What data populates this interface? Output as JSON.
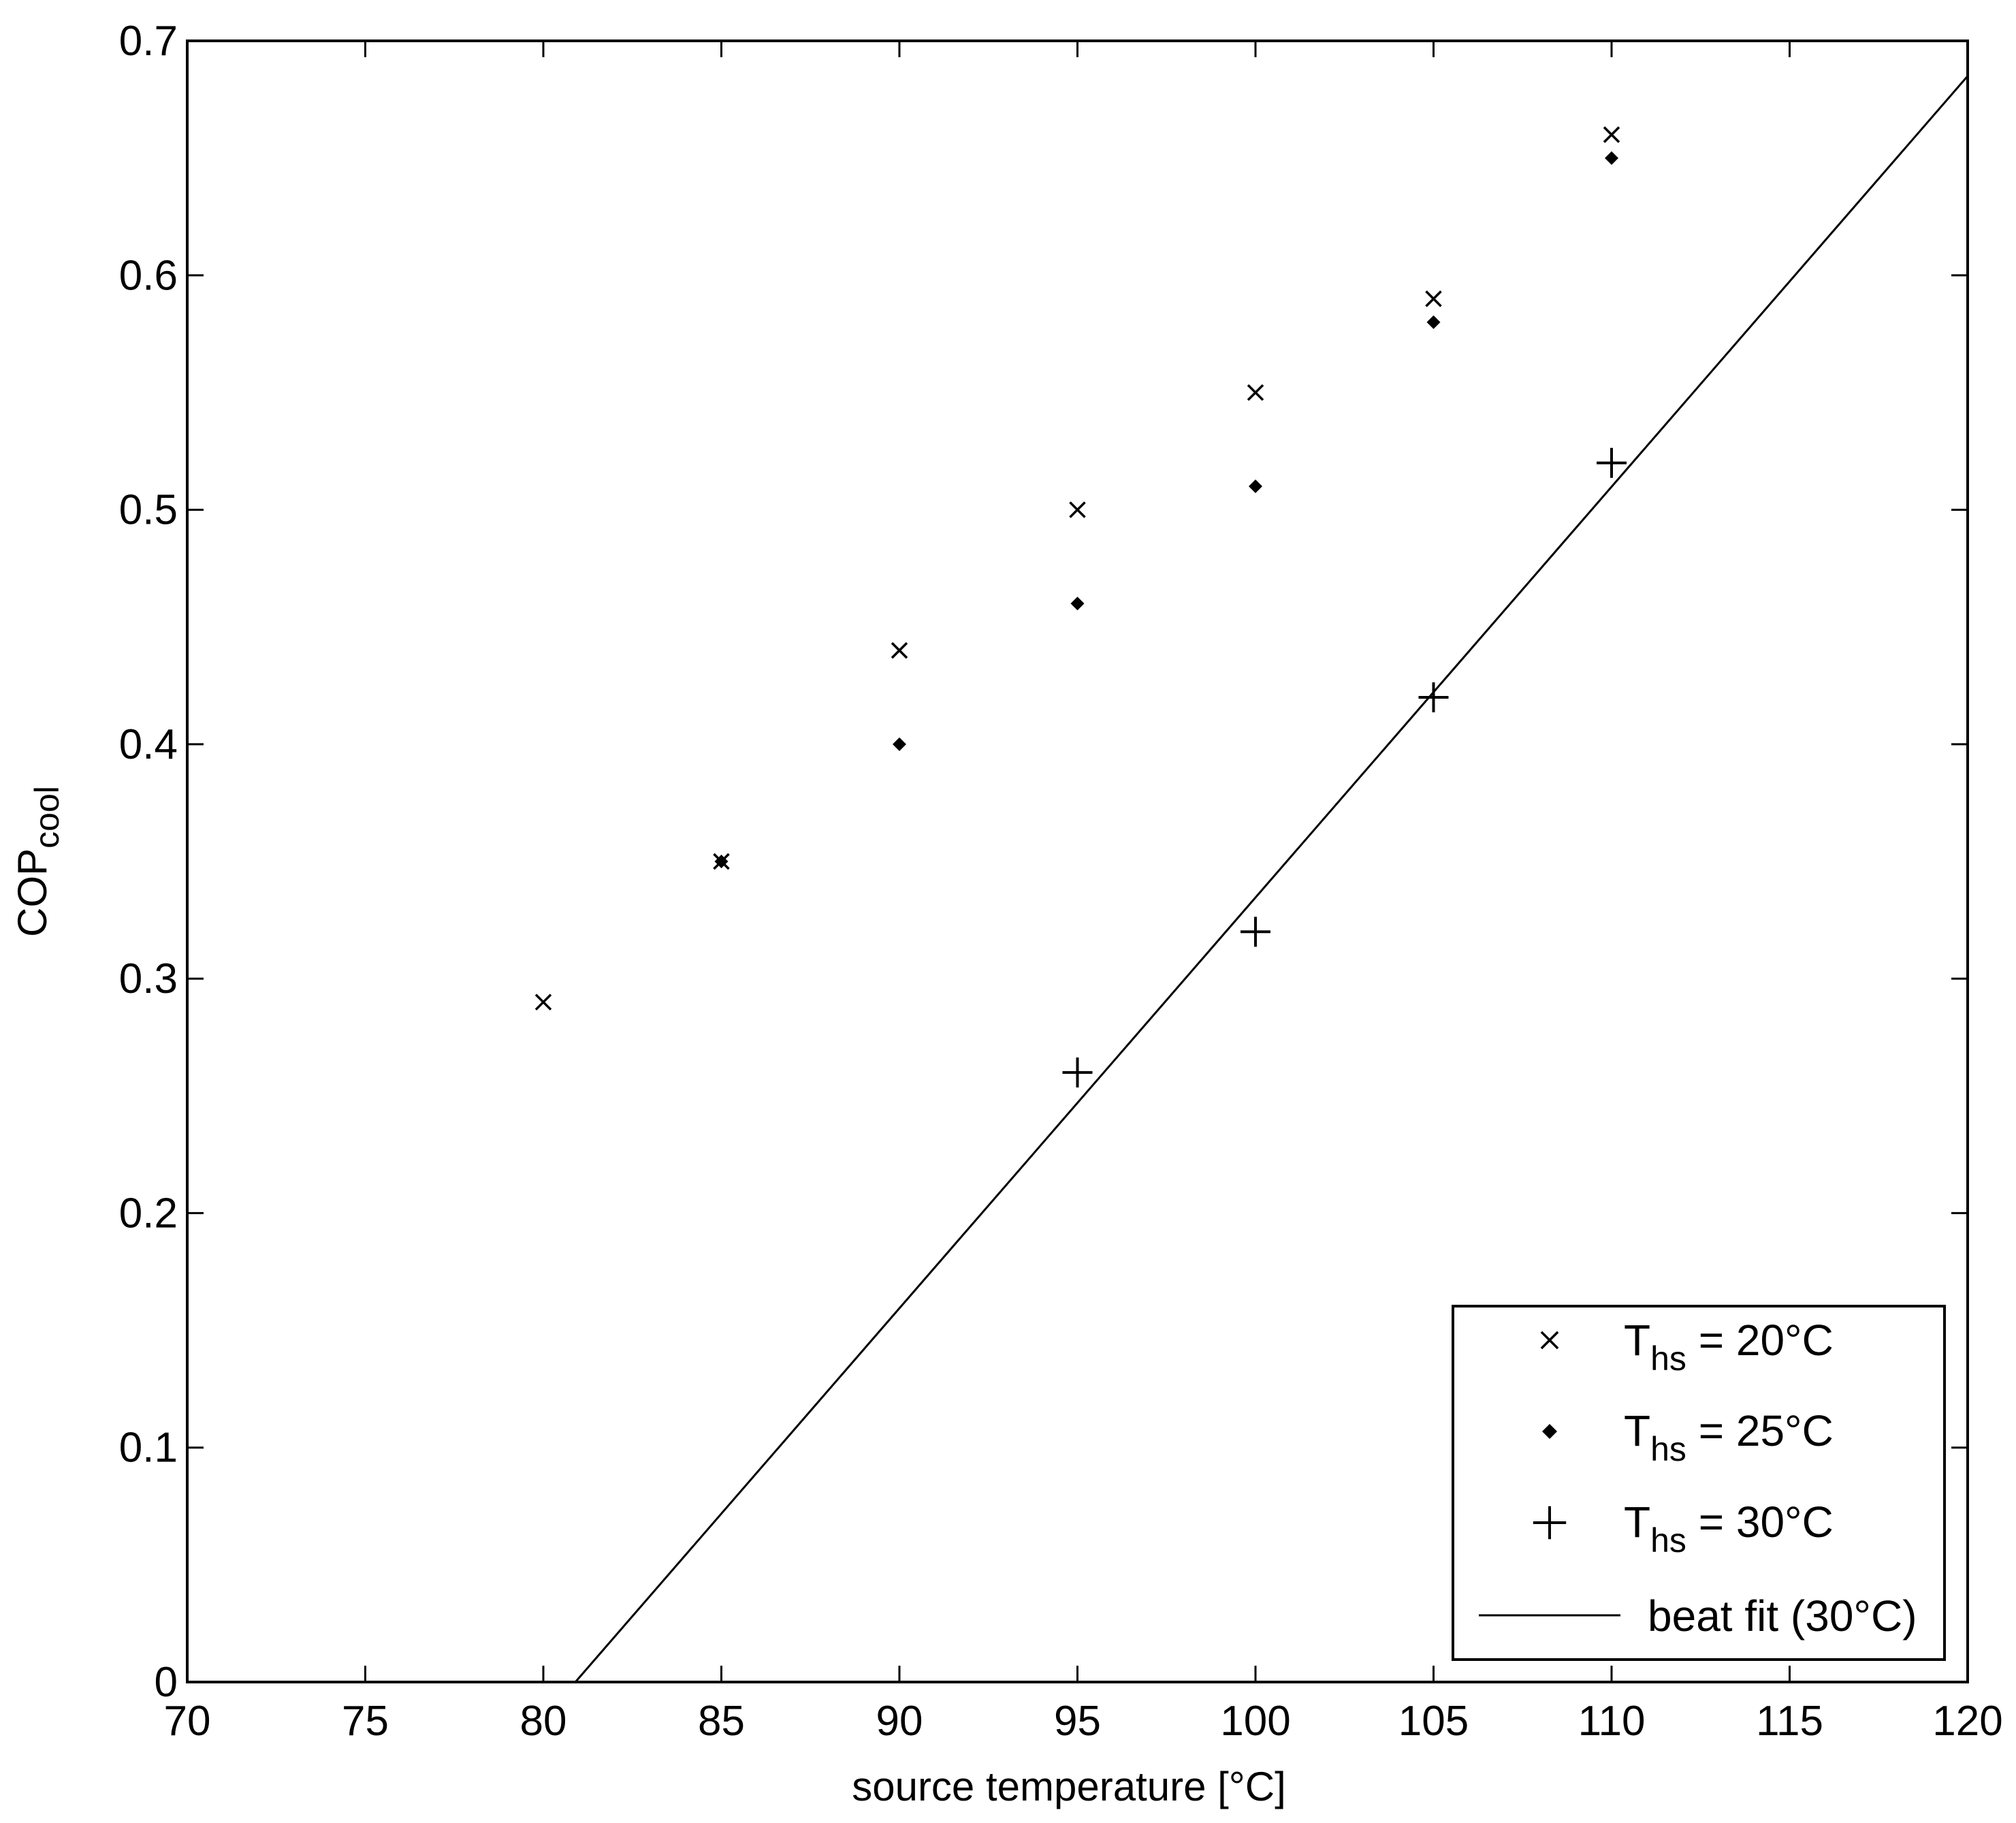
{
  "chart_data": {
    "type": "scatter",
    "xlabel": "source temperature [°C]",
    "ylabel": {
      "main": "COP",
      "sub": "cool"
    },
    "xlim": [
      70,
      120
    ],
    "ylim": [
      0,
      0.7
    ],
    "xticks": [
      70,
      75,
      80,
      85,
      90,
      95,
      100,
      105,
      110,
      115,
      120
    ],
    "yticks": [
      0,
      0.1,
      0.2,
      0.3,
      0.4,
      0.5,
      0.6,
      0.7
    ],
    "xtick_labels": [
      "70",
      "75",
      "80",
      "85",
      "90",
      "95",
      "100",
      "105",
      "110",
      "115",
      "120"
    ],
    "ytick_labels": [
      "0",
      "0.1",
      "0.2",
      "0.3",
      "0.4",
      "0.5",
      "0.6",
      "0.7"
    ],
    "grid": false,
    "legend_position": "bottom-right",
    "series": [
      {
        "name": "T_hs = 20°C",
        "legend": {
          "main": "T",
          "sub": "hs",
          "rest": " = 20°C"
        },
        "marker": "x",
        "x": [
          80,
          85,
          90,
          95,
          100,
          105,
          110
        ],
        "y": [
          0.29,
          0.35,
          0.44,
          0.5,
          0.55,
          0.59,
          0.66
        ]
      },
      {
        "name": "T_hs = 25°C",
        "legend": {
          "main": "T",
          "sub": "hs",
          "rest": " = 25°C"
        },
        "marker": "diamond",
        "x": [
          85,
          90,
          95,
          100,
          105,
          110
        ],
        "y": [
          0.35,
          0.4,
          0.46,
          0.51,
          0.58,
          0.65
        ]
      },
      {
        "name": "T_hs = 30°C",
        "legend": {
          "main": "T",
          "sub": "hs",
          "rest": " = 30°C"
        },
        "marker": "plus",
        "x": [
          95,
          100,
          105,
          110
        ],
        "y": [
          0.26,
          0.32,
          0.42,
          0.52
        ]
      },
      {
        "name": "beat fit (30°C)",
        "legend": {
          "text": "beat fit (30°C)"
        },
        "marker": "line",
        "x": [
          80.9,
          120
        ],
        "y": [
          0,
          0.685
        ]
      }
    ]
  }
}
